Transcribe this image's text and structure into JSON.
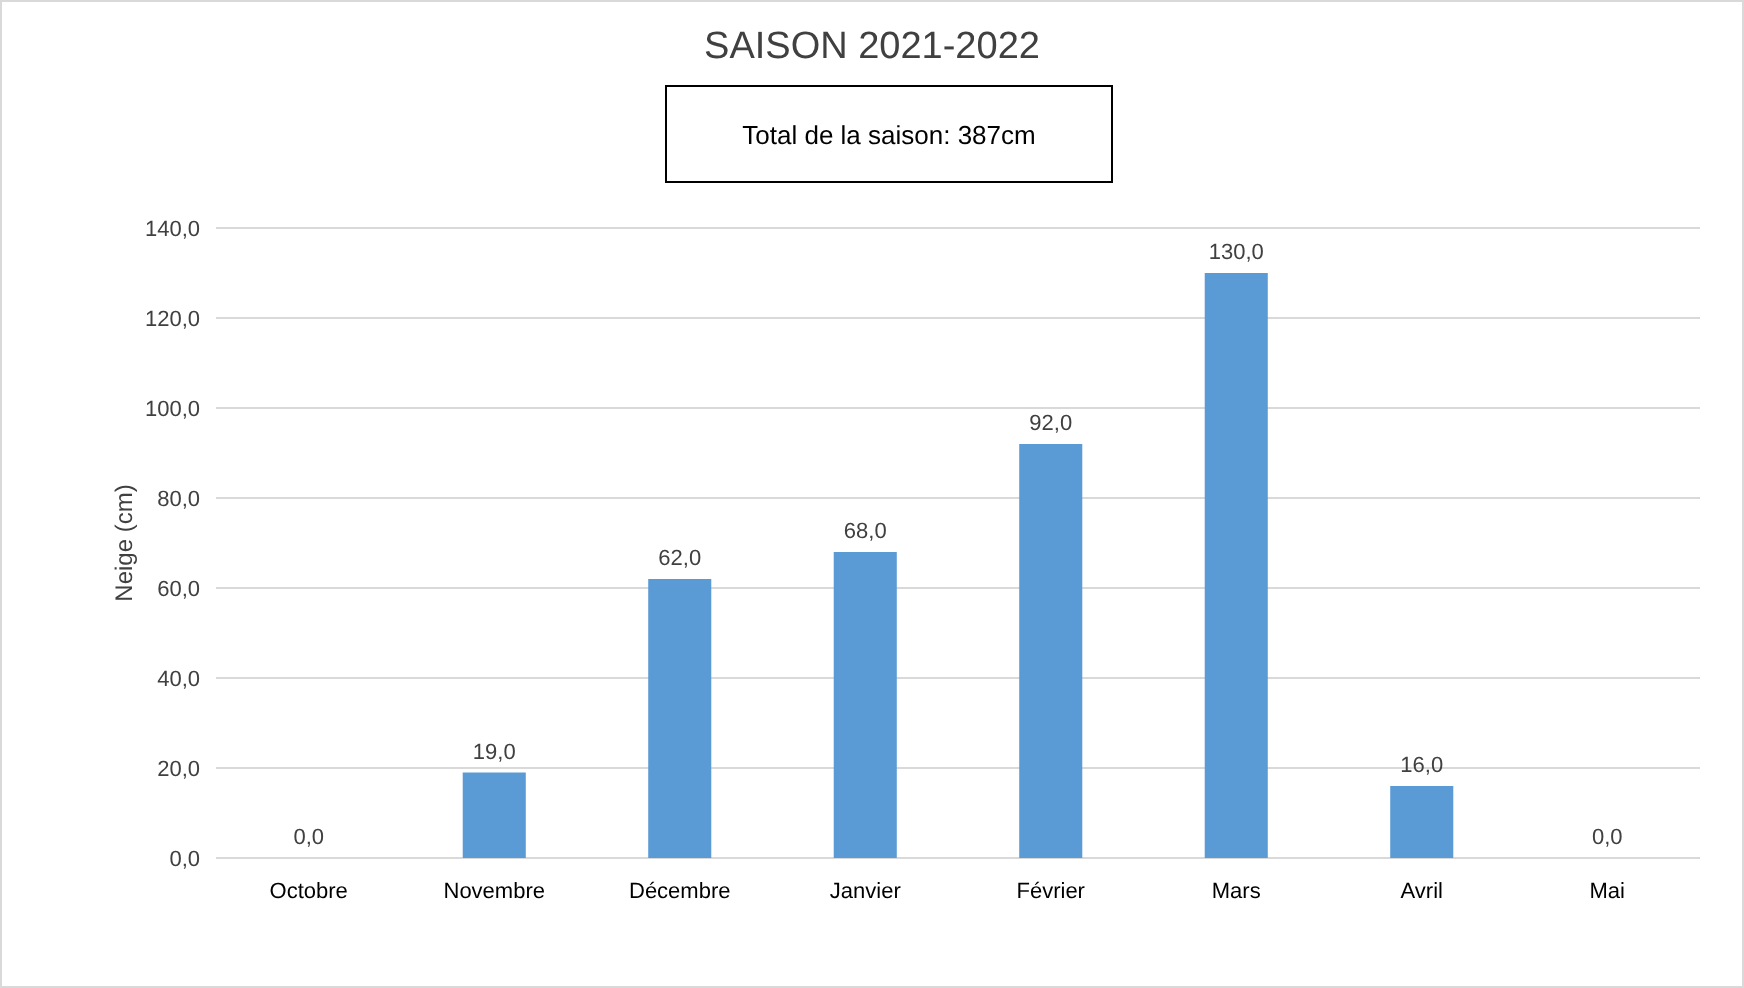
{
  "chart_data": {
    "type": "bar",
    "title": "SAISON 2021-2022",
    "ylabel": "Neige (cm)",
    "annotations": [
      "Total de la saison: 387cm"
    ],
    "categories": [
      "Octobre",
      "Novembre",
      "Décembre",
      "Janvier",
      "Février",
      "Mars",
      "Avril",
      "Mai"
    ],
    "values": [
      0,
      19,
      62,
      68,
      92,
      130,
      16,
      0
    ],
    "value_labels": [
      "0,0",
      "19,0",
      "62,0",
      "68,0",
      "92,0",
      "130,0",
      "16,0",
      "0,0"
    ],
    "color": "#5b9bd5",
    "ylim": [
      0,
      140
    ],
    "yticks": [
      {
        "value": 0,
        "label": "0,0"
      },
      {
        "value": 20,
        "label": "20,0"
      },
      {
        "value": 40,
        "label": "40,0"
      },
      {
        "value": 60,
        "label": "60,0"
      },
      {
        "value": 80,
        "label": "80,0"
      },
      {
        "value": 100,
        "label": "100,0"
      },
      {
        "value": 120,
        "label": "120,0"
      },
      {
        "value": 140,
        "label": "140,0"
      }
    ],
    "grid": "y"
  }
}
